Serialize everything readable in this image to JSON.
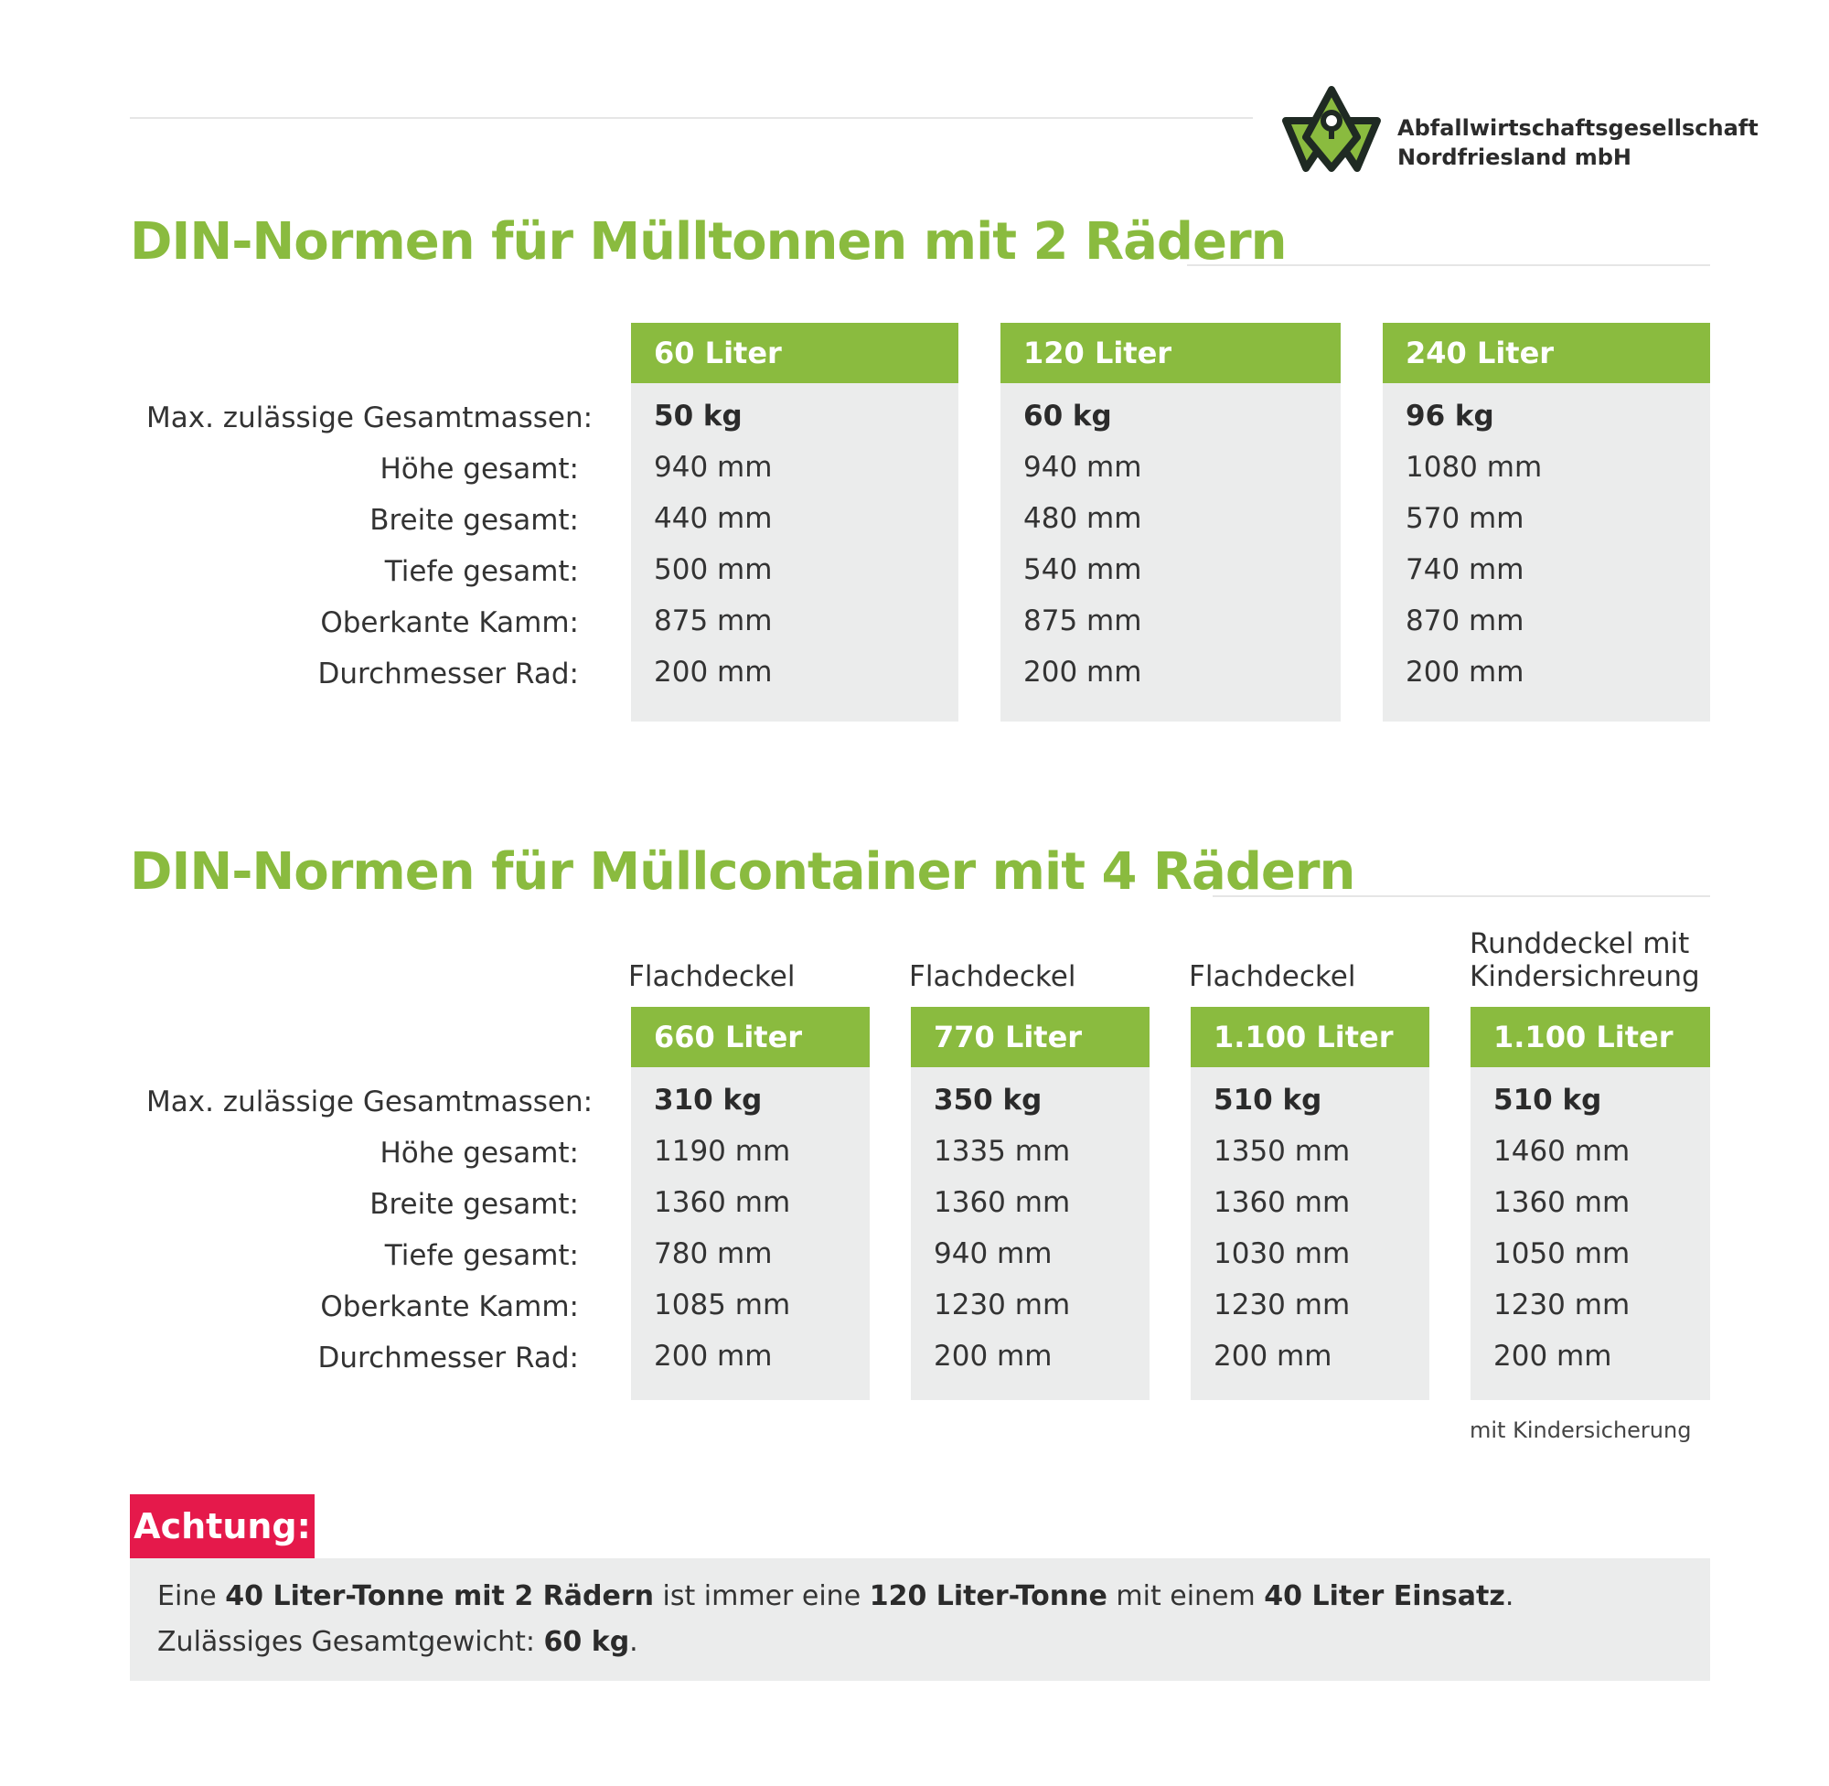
{
  "header": {
    "logo_line1": "Abfallwirtschaftsgesellschaft",
    "logo_line2": "Nordfriesland mbH",
    "logo_color": "#8abb3f"
  },
  "section1": {
    "title": "DIN-Normen für Mülltonnen mit 2 Rädern",
    "row_labels": [
      "Max. zulässige Gesamtmassen:",
      "Höhe gesamt:",
      "Breite gesamt:",
      "Tiefe gesamt:",
      "Oberkante Kamm:",
      "Durchmesser Rad:"
    ],
    "columns": [
      {
        "header": "60 Liter",
        "values": [
          "50 kg",
          "940 mm",
          "440 mm",
          "500 mm",
          "875 mm",
          "200 mm"
        ]
      },
      {
        "header": "120 Liter",
        "values": [
          "60 kg",
          "940 mm",
          "480 mm",
          "540 mm",
          "875 mm",
          "200 mm"
        ]
      },
      {
        "header": "240 Liter",
        "values": [
          "96 kg",
          "1080 mm",
          "570 mm",
          "740 mm",
          "870 mm",
          "200 mm"
        ]
      }
    ]
  },
  "section2": {
    "title": "DIN-Normen für Müllcontainer mit 4 Rädern",
    "row_labels": [
      "Max. zulässige Gesamtmassen:",
      "Höhe gesamt:",
      "Breite gesamt:",
      "Tiefe gesamt:",
      "Oberkante Kamm:",
      "Durchmesser Rad:"
    ],
    "columns": [
      {
        "lid": "Flachdeckel",
        "header": "660 Liter",
        "values": [
          "310 kg",
          "1190 mm",
          "1360 mm",
          "780 mm",
          "1085 mm",
          "200 mm"
        ]
      },
      {
        "lid": "Flachdeckel",
        "header": "770 Liter",
        "values": [
          "350 kg",
          "1335 mm",
          "1360 mm",
          "940 mm",
          "1230 mm",
          "200 mm"
        ]
      },
      {
        "lid": "Flachdeckel",
        "header": "1.100 Liter",
        "values": [
          "510 kg",
          "1350 mm",
          "1360 mm",
          "1030 mm",
          "1230 mm",
          "200 mm"
        ]
      },
      {
        "lid_line1": "Runddeckel mit",
        "lid_line2": "Kindersichreung",
        "header": "1.100 Liter",
        "values": [
          "510 kg",
          "1460 mm",
          "1360 mm",
          "1050 mm",
          "1230 mm",
          "200 mm"
        ]
      }
    ],
    "footnote": "mit Kindersicherung"
  },
  "warning": {
    "label": "Achtung:",
    "l1_a": "Eine ",
    "l1_b": "40 Liter-Tonne mit 2 Rädern",
    "l1_c": " ist immer eine ",
    "l1_d": "120 Liter-Tonne",
    "l1_e": " mit einem ",
    "l1_f": "40 Liter Einsatz",
    "l1_g": ".",
    "l2_a": "Zulässiges Gesamtgewicht: ",
    "l2_b": "60 kg",
    "l2_c": "."
  }
}
